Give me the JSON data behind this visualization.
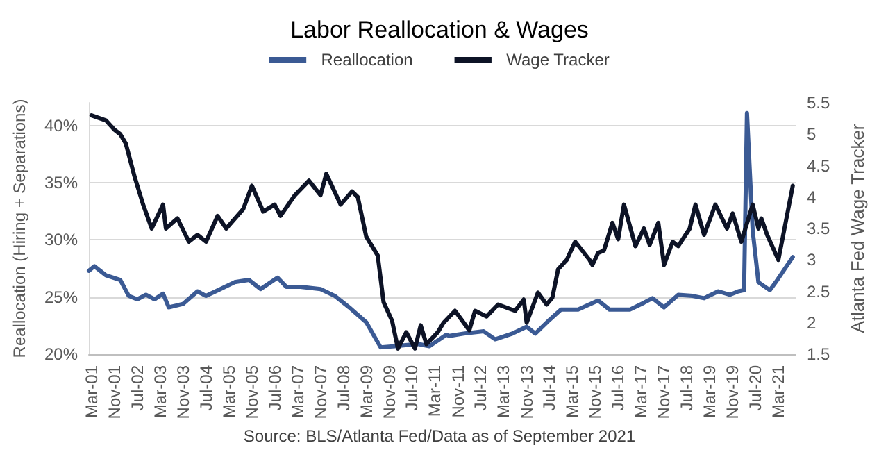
{
  "chart_data": {
    "type": "line",
    "title": "Labor Reallocation & Wages",
    "ylabel": "Reallocation (Hiring + Separations)",
    "y2label": "Atlanta Fed Wage Tracker",
    "annotations": [
      "Source: BLS/Atlanta Fed/Data as of September 2021"
    ],
    "legend": "top",
    "grid": "y",
    "marker": "none",
    "line_style": "solid",
    "xlim": [
      "2001-02",
      "2021-09"
    ],
    "xticks": [
      {
        "value": "2001-03",
        "label": "Mar-01"
      },
      {
        "value": "2001-11",
        "label": "Nov-01"
      },
      {
        "value": "2002-07",
        "label": "Jul-02"
      },
      {
        "value": "2003-03",
        "label": "Mar-03"
      },
      {
        "value": "2003-11",
        "label": "Nov-03"
      },
      {
        "value": "2004-07",
        "label": "Jul-04"
      },
      {
        "value": "2005-03",
        "label": "Mar-05"
      },
      {
        "value": "2005-11",
        "label": "Nov-05"
      },
      {
        "value": "2006-07",
        "label": "Jul-06"
      },
      {
        "value": "2007-03",
        "label": "Mar-07"
      },
      {
        "value": "2007-11",
        "label": "Nov-07"
      },
      {
        "value": "2008-07",
        "label": "Jul-08"
      },
      {
        "value": "2009-03",
        "label": "Mar-09"
      },
      {
        "value": "2009-11",
        "label": "Nov-09"
      },
      {
        "value": "2010-07",
        "label": "Jul-10"
      },
      {
        "value": "2011-03",
        "label": "Mar-11"
      },
      {
        "value": "2011-11",
        "label": "Nov-11"
      },
      {
        "value": "2012-07",
        "label": "Jul-12"
      },
      {
        "value": "2013-03",
        "label": "Mar-13"
      },
      {
        "value": "2013-11",
        "label": "Nov-13"
      },
      {
        "value": "2014-07",
        "label": "Jul-14"
      },
      {
        "value": "2015-03",
        "label": "Mar-15"
      },
      {
        "value": "2015-11",
        "label": "Nov-15"
      },
      {
        "value": "2016-07",
        "label": "Jul-16"
      },
      {
        "value": "2017-03",
        "label": "Mar-17"
      },
      {
        "value": "2017-11",
        "label": "Nov-17"
      },
      {
        "value": "2018-07",
        "label": "Jul-18"
      },
      {
        "value": "2019-03",
        "label": "Mar-19"
      },
      {
        "value": "2019-11",
        "label": "Nov-19"
      },
      {
        "value": "2020-07",
        "label": "Jul-20"
      },
      {
        "value": "2021-03",
        "label": "Mar-21"
      }
    ],
    "ylim": [
      20,
      42
    ],
    "yticks": [
      {
        "value": 20,
        "label": "20%"
      },
      {
        "value": 25,
        "label": "25%"
      },
      {
        "value": 30,
        "label": "30%"
      },
      {
        "value": 35,
        "label": "35%"
      },
      {
        "value": 40,
        "label": "40%"
      }
    ],
    "y2lim": [
      1.5,
      5.5
    ],
    "y2ticks": [
      1.5,
      2,
      2.5,
      3,
      3.5,
      4,
      4.5,
      5,
      5.5
    ],
    "series": [
      {
        "name": "Reallocation",
        "color": "#3b5a94",
        "x": [
          "2001-02",
          "2001-04",
          "2001-08",
          "2002-01",
          "2002-04",
          "2002-07",
          "2002-10",
          "2003-01",
          "2003-04",
          "2003-06",
          "2003-11",
          "2004-04",
          "2004-07",
          "2004-12",
          "2005-05",
          "2005-10",
          "2006-02",
          "2006-08",
          "2006-11",
          "2007-04",
          "2007-11",
          "2008-04",
          "2008-09",
          "2009-03",
          "2009-08",
          "2010-01",
          "2010-09",
          "2011-01",
          "2011-07",
          "2011-08",
          "2012-01",
          "2012-08",
          "2012-12",
          "2013-06",
          "2013-11",
          "2014-02",
          "2014-07",
          "2014-11",
          "2015-05",
          "2015-12",
          "2016-04",
          "2016-11",
          "2017-04",
          "2017-07",
          "2017-11",
          "2018-04",
          "2018-09",
          "2019-01",
          "2019-06",
          "2019-10",
          "2020-01",
          "2020-03",
          "2020-04",
          "2020-06",
          "2020-08",
          "2020-12",
          "2021-02",
          "2021-08"
        ],
        "values": [
          27.3,
          27.7,
          26.9,
          26.5,
          25.1,
          24.8,
          25.2,
          24.8,
          25.3,
          24.1,
          24.4,
          25.5,
          25.1,
          25.7,
          26.3,
          26.5,
          25.7,
          26.7,
          25.9,
          25.9,
          25.7,
          25.1,
          24.1,
          22.8,
          20.6,
          20.7,
          20.9,
          20.7,
          21.7,
          21.6,
          21.8,
          22.0,
          21.3,
          21.8,
          22.4,
          21.8,
          23.0,
          23.9,
          23.9,
          24.7,
          23.9,
          23.9,
          24.5,
          24.9,
          24.1,
          25.2,
          25.1,
          24.9,
          25.5,
          25.2,
          25.5,
          25.6,
          41.1,
          30.8,
          26.3,
          25.6,
          26.3,
          28.5
        ]
      },
      {
        "name": "Wage Tracker",
        "color": "#0d1326",
        "axis": "y2",
        "x": [
          "2001-03",
          "2001-08",
          "2001-11",
          "2002-01",
          "2002-03",
          "2002-06",
          "2002-09",
          "2002-12",
          "2003-04",
          "2003-05",
          "2003-09",
          "2004-01",
          "2004-04",
          "2004-07",
          "2004-11",
          "2005-02",
          "2005-08",
          "2005-11",
          "2006-03",
          "2006-07",
          "2006-09",
          "2007-02",
          "2007-07",
          "2007-11",
          "2008-01",
          "2008-06",
          "2008-10",
          "2008-12",
          "2009-03",
          "2009-05",
          "2009-07",
          "2009-09",
          "2009-12",
          "2010-02",
          "2010-05",
          "2010-08",
          "2010-10",
          "2010-12",
          "2011-04",
          "2011-06",
          "2011-10",
          "2012-03",
          "2012-05",
          "2012-09",
          "2013-01",
          "2013-07",
          "2013-10",
          "2013-11",
          "2014-03",
          "2014-06",
          "2014-08",
          "2014-10",
          "2015-01",
          "2015-04",
          "2015-09",
          "2015-10",
          "2015-12",
          "2016-02",
          "2016-05",
          "2016-07",
          "2016-09",
          "2017-01",
          "2017-04",
          "2017-06",
          "2017-09",
          "2017-11",
          "2018-02",
          "2018-04",
          "2018-08",
          "2018-10",
          "2019-01",
          "2019-05",
          "2019-09",
          "2019-11",
          "2020-02",
          "2020-06",
          "2020-08",
          "2020-09",
          "2020-11",
          "2021-03",
          "2021-08"
        ],
        "values": [
          5.3,
          5.22,
          5.07,
          5.0,
          4.85,
          4.33,
          3.88,
          3.5,
          3.88,
          3.5,
          3.66,
          3.29,
          3.4,
          3.29,
          3.7,
          3.5,
          3.81,
          4.18,
          3.77,
          3.88,
          3.7,
          4.03,
          4.26,
          4.03,
          4.37,
          3.88,
          4.09,
          4.0,
          3.37,
          3.22,
          3.07,
          2.33,
          2.03,
          1.59,
          1.85,
          1.59,
          1.96,
          1.66,
          1.85,
          2.0,
          2.19,
          1.88,
          2.19,
          2.1,
          2.29,
          2.19,
          2.37,
          2.0,
          2.48,
          2.29,
          2.4,
          2.85,
          3.0,
          3.29,
          3.0,
          2.92,
          3.11,
          3.15,
          3.59,
          3.33,
          3.88,
          3.22,
          3.5,
          3.24,
          3.59,
          2.92,
          3.29,
          3.22,
          3.5,
          3.88,
          3.4,
          3.88,
          3.5,
          3.74,
          3.29,
          3.88,
          3.5,
          3.66,
          3.4,
          3.0,
          4.18
        ]
      }
    ]
  }
}
